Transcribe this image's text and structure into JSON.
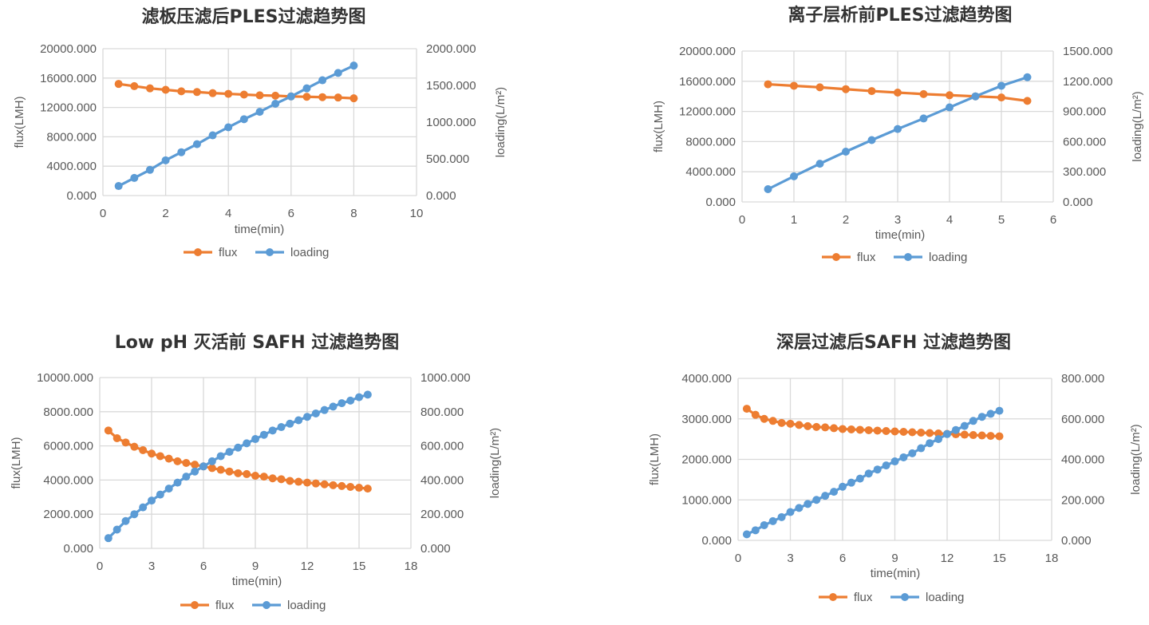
{
  "colors": {
    "flux": "#ED7D31",
    "loading": "#5B9BD5",
    "grid": "#D9D9D9"
  },
  "chart_data": [
    {
      "type": "line",
      "title": "滤板压滤后PLES过滤趋势图",
      "xlabel": "time(min)",
      "ylabel": "flux(LMH)",
      "y2label": "loading(L/m²)",
      "xlim": [
        0,
        10
      ],
      "xticks": [
        "0",
        "2",
        "4",
        "6",
        "8",
        "10"
      ],
      "ylim": [
        0,
        20000
      ],
      "yticks": [
        "0.000",
        "4000.000",
        "8000.000",
        "12000.000",
        "16000.000",
        "20000.000"
      ],
      "y2lim": [
        0,
        2000
      ],
      "y2ticks": [
        "0.000",
        "500.000",
        "1000.000",
        "1500.000",
        "2000.000"
      ],
      "legend": "bottom",
      "x": [
        0.5,
        1,
        1.5,
        2,
        2.5,
        3,
        3.5,
        4,
        4.5,
        5,
        5.5,
        6,
        6.5,
        7,
        7.5,
        8
      ],
      "series": [
        {
          "name": "flux",
          "axis": "left",
          "values": [
            15200,
            14900,
            14600,
            14400,
            14200,
            14100,
            13950,
            13850,
            13750,
            13650,
            13600,
            13500,
            13450,
            13400,
            13350,
            13250
          ]
        },
        {
          "name": "loading",
          "axis": "right",
          "values": [
            130,
            240,
            350,
            480,
            590,
            700,
            820,
            930,
            1040,
            1140,
            1250,
            1350,
            1460,
            1570,
            1670,
            1770
          ]
        }
      ]
    },
    {
      "type": "line",
      "title": "离子层析前PLES过滤趋势图",
      "xlabel": "time(min)",
      "ylabel": "flux(LMH)",
      "y2label": "loading(L/m²)",
      "xlim": [
        0,
        6
      ],
      "xticks": [
        "0",
        "1",
        "2",
        "3",
        "4",
        "5",
        "6"
      ],
      "ylim": [
        0,
        20000
      ],
      "yticks": [
        "0.000",
        "4000.000",
        "8000.000",
        "12000.000",
        "16000.000",
        "20000.000"
      ],
      "y2lim": [
        0,
        1500
      ],
      "y2ticks": [
        "0.000",
        "300.000",
        "600.000",
        "900.000",
        "1200.000",
        "1500.000"
      ],
      "legend": "bottom",
      "x": [
        0.5,
        1,
        1.5,
        2,
        2.5,
        3,
        3.5,
        4,
        4.5,
        5,
        5.5
      ],
      "series": [
        {
          "name": "flux",
          "axis": "left",
          "values": [
            15600,
            15400,
            15200,
            14950,
            14700,
            14500,
            14300,
            14150,
            14000,
            13850,
            13400
          ]
        },
        {
          "name": "loading",
          "axis": "right",
          "values": [
            127,
            255,
            380,
            500,
            615,
            725,
            830,
            940,
            1050,
            1155,
            1240
          ]
        }
      ]
    },
    {
      "type": "line",
      "title": "Low pH 灭活前 SAFH 过滤趋势图",
      "xlabel": "time(min)",
      "ylabel": "flux(LMH)",
      "y2label": "loading(L/m²)",
      "xlim": [
        0,
        18
      ],
      "xticks": [
        "0",
        "3",
        "6",
        "9",
        "12",
        "15",
        "18"
      ],
      "ylim": [
        0,
        10000
      ],
      "yticks": [
        "0.000",
        "2000.000",
        "4000.000",
        "6000.000",
        "8000.000",
        "10000.000"
      ],
      "y2lim": [
        0,
        1000
      ],
      "y2ticks": [
        "0.000",
        "200.000",
        "400.000",
        "600.000",
        "800.000",
        "1000.000"
      ],
      "legend": "bottom",
      "x": [
        0.5,
        1,
        1.5,
        2,
        2.5,
        3,
        3.5,
        4,
        4.5,
        5,
        5.5,
        6,
        6.5,
        7,
        7.5,
        8,
        8.5,
        9,
        9.5,
        10,
        10.5,
        11,
        11.5,
        12,
        12.5,
        13,
        13.5,
        14,
        14.5,
        15,
        15.5
      ],
      "series": [
        {
          "name": "flux",
          "axis": "left",
          "values": [
            6900,
            6450,
            6200,
            5950,
            5750,
            5550,
            5400,
            5250,
            5100,
            5000,
            4900,
            4800,
            4700,
            4600,
            4500,
            4400,
            4350,
            4250,
            4200,
            4100,
            4050,
            3950,
            3900,
            3850,
            3800,
            3750,
            3700,
            3650,
            3600,
            3550,
            3500
          ]
        },
        {
          "name": "loading",
          "axis": "right",
          "values": [
            60,
            110,
            160,
            200,
            240,
            280,
            315,
            350,
            385,
            420,
            450,
            480,
            510,
            540,
            565,
            590,
            615,
            640,
            665,
            690,
            710,
            730,
            750,
            770,
            790,
            810,
            830,
            850,
            865,
            885,
            900
          ]
        }
      ]
    },
    {
      "type": "line",
      "title": "深层过滤后SAFH 过滤趋势图",
      "xlabel": "time(min)",
      "ylabel": "flux(LMH)",
      "y2label": "loading(L/m²)",
      "xlim": [
        0,
        18
      ],
      "xticks": [
        "0",
        "3",
        "6",
        "9",
        "12",
        "15",
        "18"
      ],
      "ylim": [
        0,
        4000
      ],
      "yticks": [
        "0.000",
        "1000.000",
        "2000.000",
        "3000.000",
        "4000.000"
      ],
      "y2lim": [
        0,
        800
      ],
      "y2ticks": [
        "0.000",
        "200.000",
        "400.000",
        "600.000",
        "800.000"
      ],
      "legend": "bottom",
      "x": [
        0.5,
        1,
        1.5,
        2,
        2.5,
        3,
        3.5,
        4,
        4.5,
        5,
        5.5,
        6,
        6.5,
        7,
        7.5,
        8,
        8.5,
        9,
        9.5,
        10,
        10.5,
        11,
        11.5,
        12,
        12.5,
        13,
        13.5,
        14,
        14.5,
        15
      ],
      "series": [
        {
          "name": "flux",
          "axis": "left",
          "values": [
            3250,
            3100,
            3000,
            2950,
            2900,
            2880,
            2850,
            2820,
            2800,
            2790,
            2770,
            2750,
            2740,
            2730,
            2720,
            2710,
            2700,
            2690,
            2680,
            2670,
            2660,
            2650,
            2640,
            2630,
            2620,
            2610,
            2600,
            2590,
            2580,
            2570
          ]
        },
        {
          "name": "loading",
          "axis": "right",
          "values": [
            30,
            50,
            75,
            95,
            115,
            140,
            160,
            180,
            200,
            220,
            240,
            265,
            285,
            305,
            330,
            350,
            370,
            390,
            410,
            430,
            455,
            480,
            500,
            525,
            545,
            565,
            590,
            610,
            625,
            640
          ]
        }
      ]
    }
  ]
}
